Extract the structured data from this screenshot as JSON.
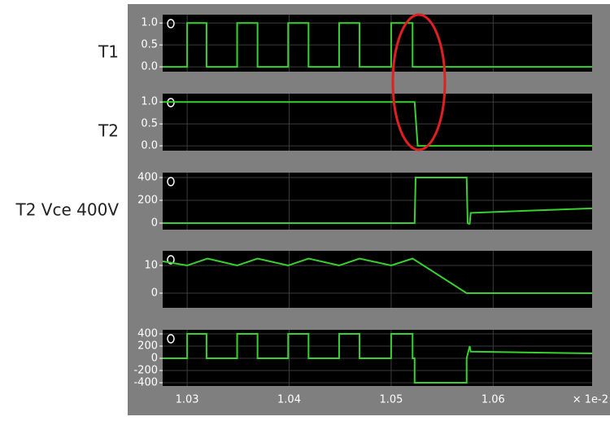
{
  "chart_data": [
    {
      "type": "line",
      "label": "T1",
      "color": "#39d12f",
      "grid": true,
      "xlim": [
        1.0276,
        1.0697
      ],
      "xticks": [
        1.03,
        1.04,
        1.05,
        1.06
      ],
      "ylim": [
        -0.11,
        1.19
      ],
      "yticks": [
        {
          "value": 1,
          "label": "1.0"
        },
        0.5,
        {
          "value": 0,
          "label": "0.0"
        }
      ],
      "x": [
        1.0276,
        1.03,
        1.03,
        1.0319,
        1.0319,
        1.0349,
        1.0349,
        1.0369,
        1.0369,
        1.0399,
        1.0399,
        1.0419,
        1.0419,
        1.0449,
        1.0449,
        1.0469,
        1.0469,
        1.05,
        1.05,
        1.0521,
        1.0521,
        1.0697
      ],
      "values": [
        0,
        0,
        1,
        1,
        0,
        0,
        1,
        1,
        0,
        0,
        1,
        1,
        0,
        0,
        1,
        1,
        0,
        0,
        1,
        1,
        0,
        0
      ]
    },
    {
      "type": "line",
      "label": "T2",
      "color": "#39d12f",
      "grid": true,
      "xlim": [
        1.0276,
        1.0697
      ],
      "xticks": [
        1.03,
        1.04,
        1.05,
        1.06
      ],
      "ylim": [
        -0.11,
        1.19
      ],
      "yticks": [
        {
          "value": 1,
          "label": "1.0"
        },
        0.5,
        {
          "value": 0,
          "label": "0.0"
        }
      ],
      "x": [
        1.0276,
        1.0523,
        1.0526,
        1.0697
      ],
      "values": [
        1,
        1,
        0,
        0
      ]
    },
    {
      "type": "line",
      "label": "T2 Vce 400V",
      "color": "#39d12f",
      "grid": true,
      "xlim": [
        1.0276,
        1.0697
      ],
      "xticks": [
        1.03,
        1.04,
        1.05,
        1.06
      ],
      "ylim": [
        -57,
        443
      ],
      "yticks": [
        400,
        200,
        0
      ],
      "x": [
        1.0276,
        1.0523,
        1.0524,
        1.0574,
        1.0575,
        1.0576,
        1.0577,
        1.0578,
        1.0697
      ],
      "values": [
        0,
        0,
        400,
        400,
        0,
        -5,
        -5,
        90,
        130
      ]
    },
    {
      "type": "line",
      "color": "#39d12f",
      "grid": true,
      "xlim": [
        1.0276,
        1.0697
      ],
      "xticks": [
        1.03,
        1.04,
        1.05,
        1.06
      ],
      "ylim": [
        -5.3,
        15.3
      ],
      "yticks": [
        10,
        0
      ],
      "x": [
        1.0276,
        1.03,
        1.032,
        1.0349,
        1.0369,
        1.0399,
        1.0419,
        1.0449,
        1.0469,
        1.05,
        1.0521,
        1.0574,
        1.0697
      ],
      "values": [
        11.5,
        10,
        12.5,
        10,
        12.5,
        10,
        12.5,
        10,
        12.5,
        10,
        12.5,
        0,
        0
      ]
    },
    {
      "type": "line",
      "color": "#39d12f",
      "grid": true,
      "xlim": [
        1.0276,
        1.0697
      ],
      "xticks": [
        1.03,
        1.04,
        1.05,
        1.06
      ],
      "x_label": "× 1e-2",
      "ylim": [
        -453,
        467
      ],
      "yticks": [
        400,
        200,
        0,
        -200,
        -400
      ],
      "x": [
        1.0276,
        1.03,
        1.03,
        1.0319,
        1.0319,
        1.0349,
        1.0349,
        1.0369,
        1.0369,
        1.0399,
        1.0399,
        1.0419,
        1.0419,
        1.0449,
        1.0449,
        1.0469,
        1.0469,
        1.05,
        1.05,
        1.0521,
        1.0521,
        1.0523,
        1.0523,
        1.0574,
        1.0574,
        1.0577,
        1.0578,
        1.0697
      ],
      "values": [
        0,
        0,
        400,
        400,
        0,
        0,
        400,
        400,
        0,
        0,
        400,
        400,
        0,
        0,
        400,
        400,
        0,
        0,
        400,
        400,
        0,
        0,
        -400,
        -400,
        0,
        200,
        110,
        80
      ]
    }
  ]
}
